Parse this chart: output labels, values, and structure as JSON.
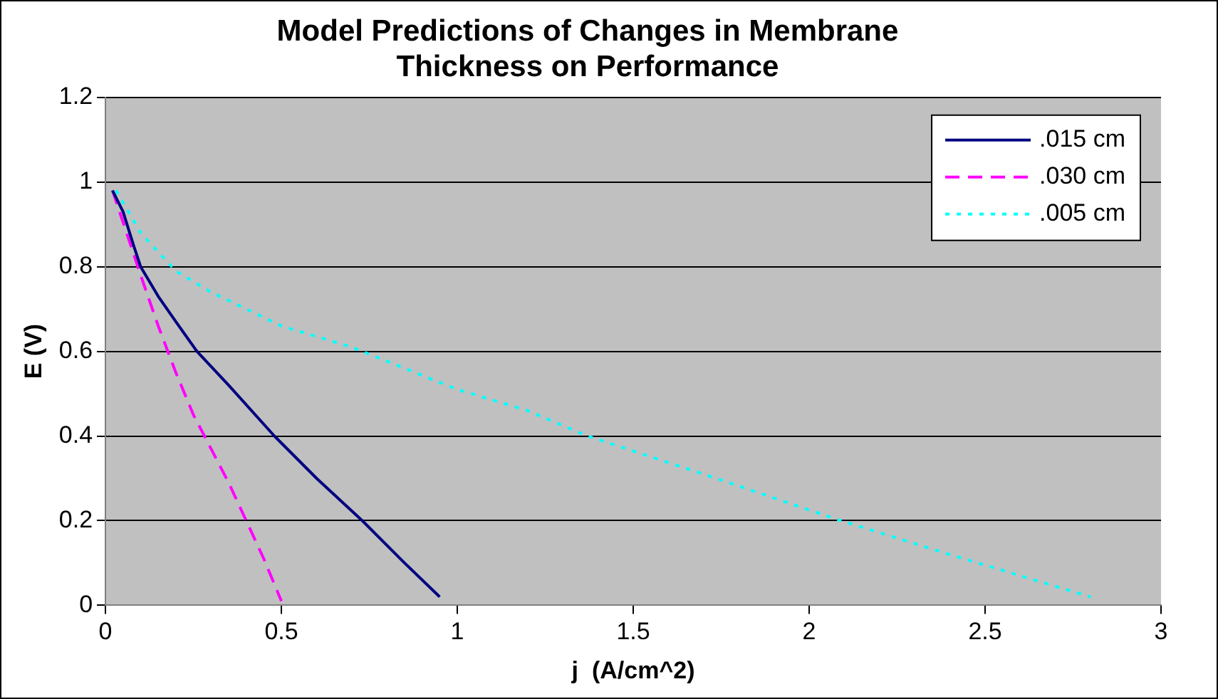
{
  "chart_data": {
    "type": "line",
    "title": "Model Predictions of Changes in Membrane Thickness on Performance",
    "xlabel": "j  (A/cm^2)",
    "ylabel": "E (V)",
    "xlim": [
      0,
      3
    ],
    "xticks": [
      0,
      0.5,
      1,
      1.5,
      2,
      2.5,
      3
    ],
    "ylim": [
      0,
      1.2
    ],
    "yticks": [
      0,
      0.2,
      0.4,
      0.6,
      0.8,
      1,
      1.2
    ],
    "grid": "y",
    "legend": "top right",
    "marker": "none",
    "series": [
      {
        "name": ".015 cm",
        "color": "#000080",
        "line_style": "solid",
        "x": [
          0.02,
          0.05,
          0.08,
          0.1,
          0.15,
          0.2,
          0.26,
          0.35,
          0.48,
          0.6,
          0.73,
          0.85,
          0.95
        ],
        "values": [
          0.98,
          0.93,
          0.85,
          0.8,
          0.73,
          0.67,
          0.6,
          0.52,
          0.4,
          0.3,
          0.2,
          0.1,
          0.02
        ]
      },
      {
        "name": ".030 cm",
        "color": "#ff00ff",
        "line_style": "dashed",
        "x": [
          0.02,
          0.06,
          0.1,
          0.15,
          0.2,
          0.25,
          0.3,
          0.35,
          0.4,
          0.45,
          0.5
        ],
        "values": [
          0.98,
          0.88,
          0.78,
          0.66,
          0.55,
          0.45,
          0.37,
          0.29,
          0.2,
          0.11,
          0.01
        ]
      },
      {
        "name": ".005 cm",
        "color": "#00ffff",
        "line_style": "dotted",
        "x": [
          0.03,
          0.1,
          0.2,
          0.3,
          0.5,
          0.7,
          1.0,
          1.2,
          1.37,
          1.7,
          2.09,
          2.4,
          2.6,
          2.8
        ],
        "values": [
          0.98,
          0.88,
          0.79,
          0.74,
          0.66,
          0.61,
          0.51,
          0.46,
          0.4,
          0.31,
          0.2,
          0.12,
          0.07,
          0.02
        ]
      }
    ]
  }
}
